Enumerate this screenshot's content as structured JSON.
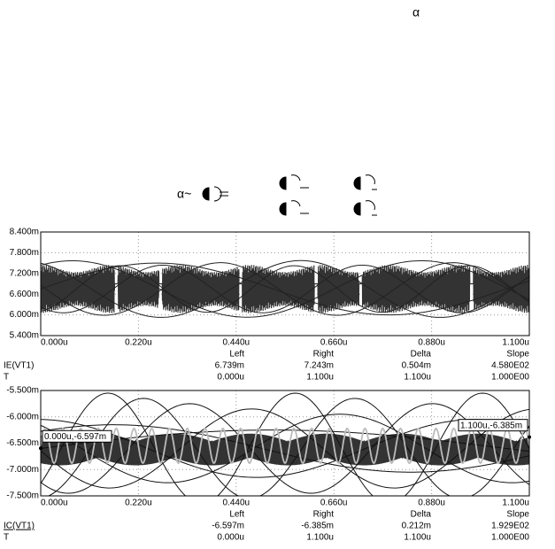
{
  "header": {
    "symbol": "α",
    "formula": "α~"
  },
  "chart_data": [
    {
      "type": "line",
      "xlim": [
        0,
        1.1
      ],
      "xticks": [
        {
          "value": 0,
          "label": "0.000u"
        },
        {
          "value": 0.22,
          "label": "0.220u"
        },
        {
          "value": 0.44,
          "label": "0.440u"
        },
        {
          "value": 0.66,
          "label": "0.660u"
        },
        {
          "value": 0.88,
          "label": "0.880u"
        },
        {
          "value": 1.1,
          "label": "1.100u"
        }
      ],
      "ylim": [
        5.4,
        8.4
      ],
      "yticks": [
        {
          "value": 8.4,
          "label": "8.400m"
        },
        {
          "value": 7.8,
          "label": "7.800m"
        },
        {
          "value": 7.2,
          "label": "7.200m"
        },
        {
          "value": 6.6,
          "label": "6.600m"
        },
        {
          "value": 6.0,
          "label": "6.000m"
        },
        {
          "value": 5.4,
          "label": "5.400m"
        }
      ],
      "grid": true,
      "table": {
        "columns": [
          "Left",
          "Right",
          "Delta",
          "Slope"
        ],
        "rows": [
          [
            "IE(VT1)",
            "6.739m",
            "7.243m",
            "0.504m",
            "4.580E02"
          ],
          [
            "T",
            "0.000u",
            "1.100u",
            "1.100u",
            "1.000E00"
          ]
        ]
      }
    },
    {
      "type": "line",
      "xlim": [
        0,
        1.1
      ],
      "xticks": [
        {
          "value": 0,
          "label": "0.000u"
        },
        {
          "value": 0.22,
          "label": "0.220u"
        },
        {
          "value": 0.44,
          "label": "0.440u"
        },
        {
          "value": 0.66,
          "label": "0.660u"
        },
        {
          "value": 0.88,
          "label": "0.880u"
        },
        {
          "value": 1.1,
          "label": "1.100u"
        }
      ],
      "ylim": [
        -7.5,
        -5.5
      ],
      "yticks": [
        {
          "value": -5.5,
          "label": "-5.500m"
        },
        {
          "value": -6.0,
          "label": "-6.000m"
        },
        {
          "value": -6.5,
          "label": "-6.500m"
        },
        {
          "value": -7.0,
          "label": "-7.000m"
        },
        {
          "value": -7.5,
          "label": "-7.500m"
        }
      ],
      "grid": true,
      "cursors": [
        {
          "x": 0,
          "y": -6.597,
          "label": "0.000u,-6.597m"
        },
        {
          "x": 1.1,
          "y": -6.385,
          "label": "1.100u,-6.385m"
        }
      ],
      "table": {
        "columns": [
          "Left",
          "Right",
          "Delta",
          "Slope"
        ],
        "rows": [
          [
            "IC(VT1)",
            "-6.597m",
            "-6.385m",
            "0.212m",
            "1.929E02"
          ],
          [
            "T",
            "0.000u",
            "1.100u",
            "1.100u",
            "1.000E00"
          ]
        ]
      }
    }
  ]
}
